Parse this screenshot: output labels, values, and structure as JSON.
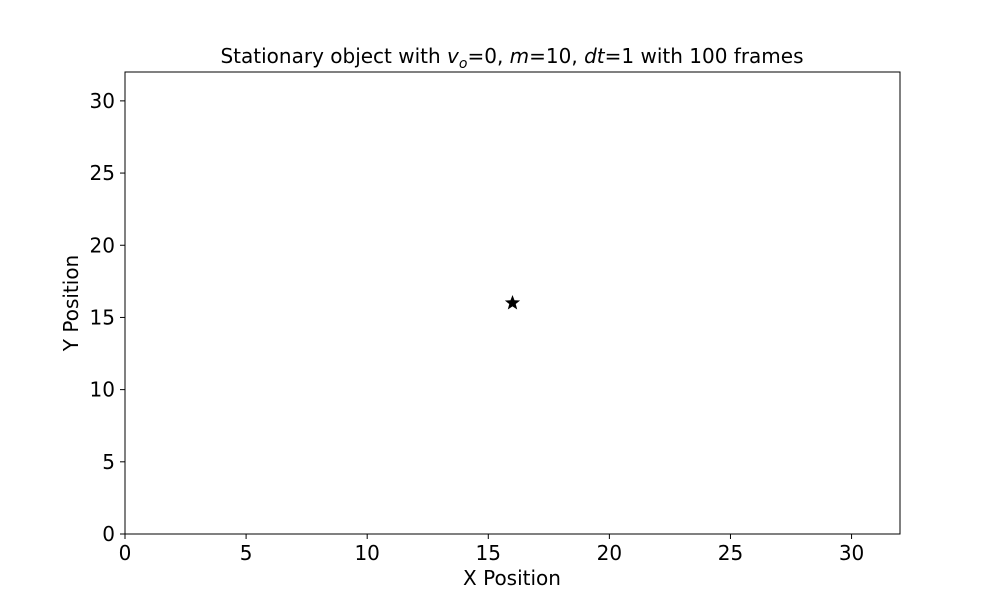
{
  "chart_data": {
    "type": "scatter",
    "title": {
      "prefix": "Stationary object with ",
      "v_symbol": "v",
      "v_subscript": "o",
      "v_value": "=0, ",
      "m_symbol": "m",
      "m_value": "=10, ",
      "dt_symbol": "dt",
      "dt_value": "=1 with 100 frames"
    },
    "xlabel": "X Position",
    "ylabel": "Y Position",
    "xlim": [
      0,
      32
    ],
    "ylim": [
      0,
      32
    ],
    "xticks": [
      0,
      5,
      10,
      15,
      20,
      25,
      30
    ],
    "yticks": [
      0,
      5,
      10,
      15,
      20,
      25,
      30
    ],
    "grid": false,
    "series": [
      {
        "marker": "star",
        "color": "#000000",
        "points": [
          {
            "x": 16,
            "y": 16
          }
        ]
      }
    ]
  }
}
